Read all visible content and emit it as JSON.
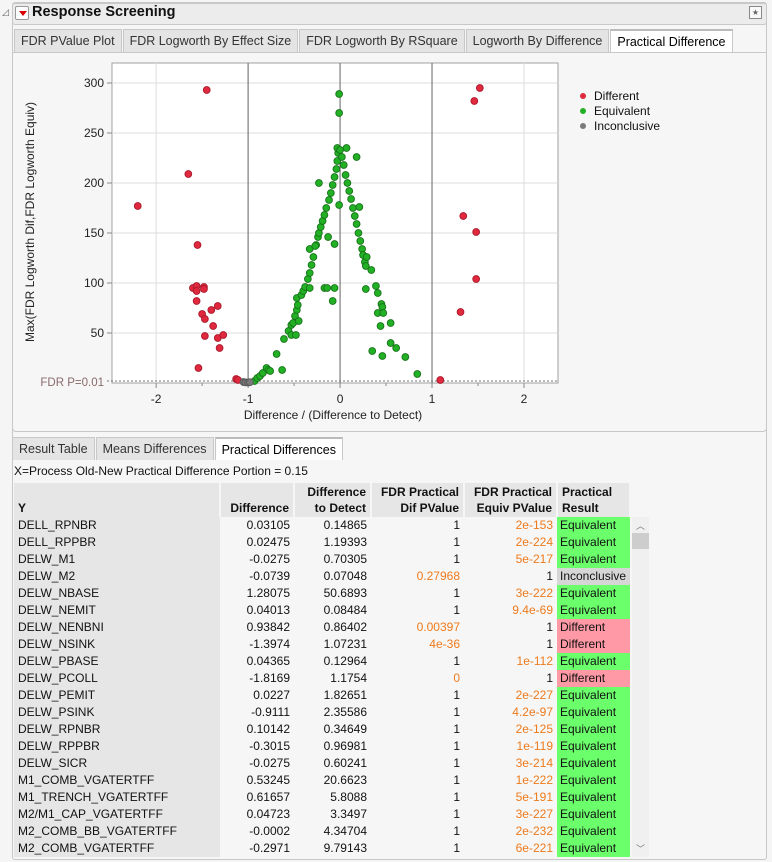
{
  "header": {
    "title": "Response Screening"
  },
  "plot_tabs": [
    "FDR PValue Plot",
    "FDR Logworth By Effect Size",
    "FDR Logworth By RSquare",
    "Logworth By Difference",
    "Practical Difference"
  ],
  "active_plot_tab": 4,
  "chart_data": {
    "type": "scatter",
    "xlabel": "Difference / (Difference to Detect)",
    "ylabel": "Max(FDR Logworth Dif,FDR Logworth Equiv)",
    "xlim": [
      -2.48,
      2.37
    ],
    "ylim": [
      0,
      320
    ],
    "xticks": [
      "-2",
      "-1",
      "0",
      "1",
      "2"
    ],
    "yticks": [
      "50",
      "100",
      "150",
      "200",
      "250",
      "300"
    ],
    "reference_vlines": [
      -1,
      0,
      1
    ],
    "threshold_line": {
      "label": "FDR P=0.01",
      "y": 2
    },
    "grid": true,
    "legend": "right",
    "series": [
      {
        "name": "Different",
        "color": "#e0293f",
        "points": [
          [
            -2.2,
            177
          ],
          [
            -1.45,
            293
          ],
          [
            -1.65,
            209
          ],
          [
            -1.55,
            138
          ],
          [
            -1.6,
            95
          ],
          [
            -1.56,
            97
          ],
          [
            -1.56,
            92
          ],
          [
            -1.48,
            96
          ],
          [
            -1.48,
            94
          ],
          [
            -1.56,
            82
          ],
          [
            -1.33,
            77
          ],
          [
            -1.4,
            73
          ],
          [
            -1.5,
            69
          ],
          [
            -1.47,
            64
          ],
          [
            -1.38,
            57
          ],
          [
            -1.47,
            47
          ],
          [
            -1.33,
            45
          ],
          [
            -1.27,
            48
          ],
          [
            -1.31,
            35
          ],
          [
            -1.54,
            15
          ],
          [
            -1.13,
            4
          ],
          [
            -1.11,
            3
          ],
          [
            1.52,
            295
          ],
          [
            1.46,
            282
          ],
          [
            1.34,
            167
          ],
          [
            1.48,
            151
          ],
          [
            1.48,
            104
          ],
          [
            1.31,
            71
          ],
          [
            1.09,
            3
          ]
        ]
      },
      {
        "name": "Equivalent",
        "color": "#22b024",
        "points": [
          [
            -0.93,
            2
          ],
          [
            -0.9,
            5
          ],
          [
            -0.87,
            7
          ],
          [
            -0.84,
            10
          ],
          [
            -0.8,
            15
          ],
          [
            -0.78,
            13
          ],
          [
            -0.76,
            12
          ],
          [
            -0.69,
            29
          ],
          [
            -0.63,
            13
          ],
          [
            -0.61,
            44
          ],
          [
            -0.56,
            52
          ],
          [
            -0.53,
            58
          ],
          [
            -0.53,
            48
          ],
          [
            -0.51,
            60
          ],
          [
            -0.48,
            48
          ],
          [
            -0.49,
            67
          ],
          [
            -0.47,
            73
          ],
          [
            -0.46,
            78
          ],
          [
            -0.45,
            62
          ],
          [
            -0.47,
            85
          ],
          [
            -0.42,
            88
          ],
          [
            -0.4,
            92
          ],
          [
            -0.38,
            96
          ],
          [
            -0.33,
            95
          ],
          [
            -0.35,
            104
          ],
          [
            -0.33,
            110
          ],
          [
            -0.31,
            118
          ],
          [
            -0.29,
            126
          ],
          [
            -0.33,
            134
          ],
          [
            -0.26,
            138
          ],
          [
            -0.27,
            137
          ],
          [
            -0.24,
            146
          ],
          [
            -0.23,
            150
          ],
          [
            -0.21,
            156
          ],
          [
            -0.19,
            162
          ],
          [
            -0.17,
            95
          ],
          [
            -0.17,
            168
          ],
          [
            -0.14,
            95
          ],
          [
            -0.15,
            175
          ],
          [
            -0.13,
            146
          ],
          [
            -0.12,
            183
          ],
          [
            -0.1,
            190
          ],
          [
            -0.08,
            198
          ],
          [
            -0.08,
            82
          ],
          [
            -0.06,
            95
          ],
          [
            -0.06,
            139
          ],
          [
            -0.06,
            206
          ],
          [
            -0.04,
            214
          ],
          [
            -0.03,
            222
          ],
          [
            -0.02,
            230
          ],
          [
            -0.23,
            200
          ],
          [
            -0.03,
            235
          ],
          [
            -0.01,
            289
          ],
          [
            -0.01,
            270
          ],
          [
            -0.01,
            178
          ],
          [
            0.0,
            233
          ],
          [
            0.02,
            226
          ],
          [
            0.04,
            218
          ],
          [
            0.06,
            208
          ],
          [
            0.07,
            235
          ],
          [
            0.08,
            200
          ],
          [
            0.1,
            192
          ],
          [
            0.12,
            184
          ],
          [
            0.14,
            175
          ],
          [
            0.16,
            167
          ],
          [
            0.18,
            226
          ],
          [
            0.18,
            159
          ],
          [
            0.2,
            150
          ],
          [
            0.21,
            176
          ],
          [
            0.22,
            142
          ],
          [
            0.24,
            134
          ],
          [
            0.25,
            128
          ],
          [
            0.27,
            121
          ],
          [
            0.28,
            117
          ],
          [
            0.29,
            126
          ],
          [
            0.34,
            113
          ],
          [
            0.28,
            94
          ],
          [
            0.39,
            97
          ],
          [
            0.41,
            90
          ],
          [
            0.45,
            79
          ],
          [
            0.46,
            76
          ],
          [
            0.41,
            70
          ],
          [
            0.47,
            70
          ],
          [
            0.44,
            57
          ],
          [
            0.55,
            60
          ],
          [
            0.55,
            40
          ],
          [
            0.61,
            35
          ],
          [
            0.35,
            32
          ],
          [
            0.46,
            27
          ],
          [
            0.71,
            26
          ],
          [
            0.84,
            9
          ]
        ]
      },
      {
        "name": "Inconclusive",
        "color": "#7a7a7a",
        "points": [
          [
            -1.05,
            1
          ],
          [
            -1.03,
            0.6
          ],
          [
            -1.0,
            0.5
          ],
          [
            -0.98,
            0.8
          ]
        ]
      }
    ]
  },
  "table_tabs": [
    "Result Table",
    "Means Differences",
    "Practical Differences"
  ],
  "active_table_tab": 2,
  "info_line": "X=Process  Old-New  Practical Difference Portion = 0.15",
  "table": {
    "headers": [
      "Y",
      "Difference",
      "Difference to Detect",
      "FDR Practical Dif PValue",
      "FDR Practical Equiv PValue",
      "Practical Result"
    ],
    "rows": [
      [
        "DELL_RPNBR",
        "0.03105",
        "0.14865",
        "1",
        "2e-153",
        "Equivalent"
      ],
      [
        "DELL_RPPBR",
        "0.02475",
        "1.19393",
        "1",
        "2e-224",
        "Equivalent"
      ],
      [
        "DELW_M1",
        "-0.0275",
        "0.70305",
        "1",
        "5e-217",
        "Equivalent"
      ],
      [
        "DELW_M2",
        "-0.0739",
        "0.07048",
        "0.27968",
        "1",
        "Inconclusive"
      ],
      [
        "DELW_NBASE",
        "1.28075",
        "50.6893",
        "1",
        "3e-222",
        "Equivalent"
      ],
      [
        "DELW_NEMIT",
        "0.04013",
        "0.08484",
        "1",
        "9.4e-69",
        "Equivalent"
      ],
      [
        "DELW_NENBNI",
        "0.93842",
        "0.86402",
        "0.00397",
        "1",
        "Different"
      ],
      [
        "DELW_NSINK",
        "-1.3974",
        "1.07231",
        "4e-36",
        "1",
        "Different"
      ],
      [
        "DELW_PBASE",
        "0.04365",
        "0.12964",
        "1",
        "1e-112",
        "Equivalent"
      ],
      [
        "DELW_PCOLL",
        "-1.8169",
        "1.1754",
        "0",
        "1",
        "Different"
      ],
      [
        "DELW_PEMIT",
        "0.0227",
        "1.82651",
        "1",
        "2e-227",
        "Equivalent"
      ],
      [
        "DELW_PSINK",
        "-0.9111",
        "2.35586",
        "1",
        "4.2e-97",
        "Equivalent"
      ],
      [
        "DELW_RPNBR",
        "0.10142",
        "0.34649",
        "1",
        "2e-125",
        "Equivalent"
      ],
      [
        "DELW_RPPBR",
        "-0.3015",
        "0.96981",
        "1",
        "1e-119",
        "Equivalent"
      ],
      [
        "DELW_SICR",
        "-0.0275",
        "0.60241",
        "1",
        "3e-214",
        "Equivalent"
      ],
      [
        "M1_COMB_VGATERTFF",
        "0.53245",
        "20.6623",
        "1",
        "1e-222",
        "Equivalent"
      ],
      [
        "M1_TRENCH_VGATERTFF",
        "0.61657",
        "5.8088",
        "1",
        "5e-191",
        "Equivalent"
      ],
      [
        "M2/M1_CAP_VGATERTFF",
        "0.04723",
        "3.3497",
        "1",
        "3e-227",
        "Equivalent"
      ],
      [
        "M2_COMB_BB_VGATERTFF",
        "-0.0002",
        "4.34704",
        "1",
        "2e-232",
        "Equivalent"
      ],
      [
        "M2_COMB_VGATERTFF",
        "-0.2971",
        "9.79143",
        "1",
        "6e-221",
        "Equivalent"
      ]
    ]
  },
  "colors": {
    "orange_pvalue": "#ee7a1c",
    "equivalent": "#6bff6b",
    "different": "#ff99a6",
    "inconclusive": "#d6d6d6"
  }
}
